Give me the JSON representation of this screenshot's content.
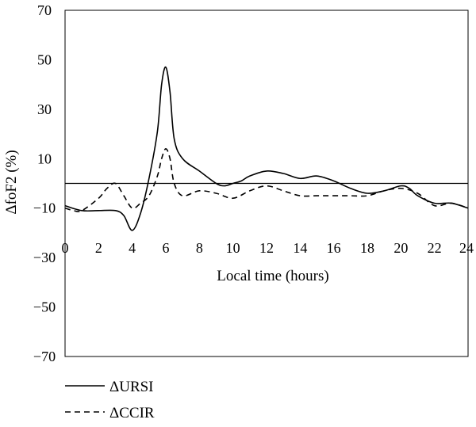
{
  "chart_data": {
    "type": "line",
    "title": "",
    "xlabel": "Local time (hours)",
    "ylabel": "ΔfoF2 (%)",
    "xlim": [
      0,
      24
    ],
    "ylim": [
      -70,
      70
    ],
    "x_ticks": [
      0,
      2,
      4,
      6,
      8,
      10,
      12,
      14,
      16,
      18,
      20,
      22,
      24
    ],
    "x_tick_labels": [
      "0",
      "2",
      "4",
      "6",
      "8",
      "10",
      "12",
      "14",
      "16",
      "18",
      "20",
      "22",
      "24"
    ],
    "y_ticks": [
      70,
      50,
      30,
      10,
      -10,
      -30,
      -50,
      -70
    ],
    "y_tick_labels": [
      "70",
      "50",
      "30",
      "10",
      "−10",
      "−30",
      "−50",
      "−70"
    ],
    "reference_line_y": 0,
    "grid": false,
    "legend_position": "bottom-left",
    "series": [
      {
        "name": "ΔURSI",
        "dash": "solid",
        "color": "#000000",
        "x": [
          0,
          1,
          2,
          3,
          3.5,
          4,
          4.5,
          5,
          5.5,
          5.75,
          6,
          6.25,
          6.5,
          7,
          8,
          9,
          9.5,
          10,
          10.5,
          11,
          12,
          13,
          14,
          15,
          16,
          17,
          18,
          19,
          20,
          20.5,
          21,
          22,
          23,
          24
        ],
        "y": [
          -9,
          -11,
          -11,
          -11,
          -13,
          -19,
          -12,
          2,
          21,
          40,
          47,
          37,
          18,
          10,
          5,
          0,
          -1,
          0,
          1,
          3,
          5,
          4,
          2,
          3,
          1,
          -2,
          -4,
          -3,
          -1,
          -2,
          -5,
          -8,
          -8,
          -10
        ]
      },
      {
        "name": "ΔCCIR",
        "dash": "dashed",
        "color": "#000000",
        "x": [
          0,
          0.5,
          1,
          2,
          2.5,
          3,
          3.5,
          4,
          4.5,
          5,
          5.5,
          5.75,
          6,
          6.25,
          6.5,
          7,
          8,
          9,
          10,
          11,
          12,
          13,
          14,
          15,
          16,
          17,
          18,
          19,
          20,
          21,
          22,
          23,
          24
        ],
        "y": [
          -10,
          -11,
          -11,
          -6,
          -2,
          0,
          -5,
          -10,
          -8,
          -5,
          3,
          10,
          14,
          10,
          0,
          -5,
          -3,
          -4,
          -6,
          -3,
          -1,
          -3,
          -5,
          -5,
          -5,
          -5,
          -5,
          -3,
          -2,
          -4,
          -9,
          -8,
          -10
        ]
      }
    ]
  }
}
